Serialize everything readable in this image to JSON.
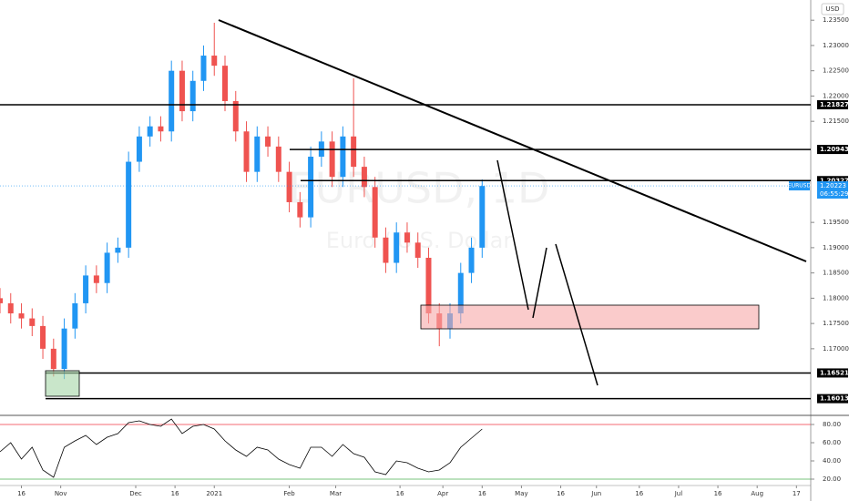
{
  "chart_data": {
    "type": "candlestick",
    "symbol": "EURUSD",
    "currency": "USD",
    "watermark": "EURUSD, 1D",
    "watermark_sub": "Euro / U.S. Dollar",
    "up_color": "#2196f3",
    "down_color": "#ef5350",
    "x": [
      0,
      3,
      6,
      9,
      12,
      15,
      18,
      21,
      24,
      27,
      30,
      33,
      36,
      39,
      42,
      45,
      48,
      51,
      54,
      57,
      60,
      63,
      66,
      69,
      72,
      75,
      78,
      81,
      84,
      87,
      90,
      93,
      96,
      99,
      102,
      105,
      108,
      111,
      114,
      117,
      120,
      123,
      126,
      129,
      132,
      135
    ],
    "open": [
      1.18,
      1.179,
      1.177,
      1.176,
      1.1745,
      1.17,
      1.166,
      1.174,
      1.179,
      1.1845,
      1.183,
      1.189,
      1.19,
      1.207,
      1.212,
      1.214,
      1.213,
      1.225,
      1.217,
      1.223,
      1.228,
      1.226,
      1.219,
      1.213,
      1.205,
      1.212,
      1.21,
      1.205,
      1.199,
      1.196,
      1.208,
      1.211,
      1.204,
      1.212,
      1.206,
      1.202,
      1.192,
      1.187,
      1.193,
      1.191,
      1.188,
      1.177,
      1.174,
      1.177,
      1.185,
      1.19
    ],
    "high": [
      1.182,
      1.181,
      1.179,
      1.178,
      1.1765,
      1.172,
      1.176,
      1.181,
      1.1865,
      1.1865,
      1.191,
      1.192,
      1.209,
      1.214,
      1.216,
      1.216,
      1.227,
      1.227,
      1.225,
      1.23,
      1.2345,
      1.228,
      1.221,
      1.215,
      1.214,
      1.214,
      1.212,
      1.207,
      1.201,
      1.21,
      1.213,
      1.213,
      1.214,
      1.2235,
      1.208,
      1.204,
      1.194,
      1.195,
      1.195,
      1.193,
      1.19,
      1.179,
      1.179,
      1.187,
      1.192,
      1.2035
    ],
    "low": [
      1.177,
      1.175,
      1.174,
      1.1725,
      1.168,
      1.1645,
      1.164,
      1.172,
      1.177,
      1.181,
      1.181,
      1.187,
      1.188,
      1.205,
      1.21,
      1.211,
      1.211,
      1.215,
      1.215,
      1.221,
      1.224,
      1.217,
      1.211,
      1.203,
      1.203,
      1.208,
      1.203,
      1.197,
      1.194,
      1.194,
      1.206,
      1.202,
      1.202,
      1.204,
      1.2,
      1.19,
      1.185,
      1.185,
      1.189,
      1.186,
      1.175,
      1.1705,
      1.172,
      1.175,
      1.183,
      1.188
    ],
    "close": [
      1.179,
      1.177,
      1.176,
      1.1745,
      1.17,
      1.166,
      1.174,
      1.179,
      1.1845,
      1.183,
      1.189,
      1.19,
      1.207,
      1.212,
      1.214,
      1.213,
      1.225,
      1.217,
      1.223,
      1.228,
      1.226,
      1.219,
      1.213,
      1.205,
      1.212,
      1.21,
      1.205,
      1.199,
      1.196,
      1.208,
      1.211,
      1.204,
      1.212,
      1.206,
      1.202,
      1.192,
      1.187,
      1.193,
      1.191,
      1.188,
      1.177,
      1.174,
      1.177,
      1.185,
      1.19,
      1.2022
    ],
    "xlim": [
      0,
      227
    ],
    "ylim": [
      1.157,
      1.239
    ],
    "xticks": [
      {
        "value": 6,
        "label": "16"
      },
      {
        "value": 17,
        "label": "Nov"
      },
      {
        "value": 38,
        "label": "Dec"
      },
      {
        "value": 49,
        "label": "16"
      },
      {
        "value": 60,
        "label": "2021"
      },
      {
        "value": 81,
        "label": "Feb"
      },
      {
        "value": 94,
        "label": "Mar"
      },
      {
        "value": 112,
        "label": "16"
      },
      {
        "value": 124,
        "label": "Apr"
      },
      {
        "value": 135,
        "label": "16"
      },
      {
        "value": 146,
        "label": "May"
      },
      {
        "value": 157,
        "label": "16"
      },
      {
        "value": 167,
        "label": "Jun"
      },
      {
        "value": 179,
        "label": "16"
      },
      {
        "value": 190,
        "label": "Jul"
      },
      {
        "value": 201,
        "label": "16"
      },
      {
        "value": 212,
        "label": "Aug"
      },
      {
        "value": 223,
        "label": "17"
      }
    ],
    "yticks": [
      {
        "value": 1.235,
        "label": "1.23500"
      },
      {
        "value": 1.23,
        "label": "1.23000"
      },
      {
        "value": 1.225,
        "label": "1.22500"
      },
      {
        "value": 1.22,
        "label": "1.22000"
      },
      {
        "value": 1.215,
        "label": "1.21500"
      },
      {
        "value": 1.195,
        "label": "1.19500"
      },
      {
        "value": 1.19,
        "label": "1.19000"
      },
      {
        "value": 1.185,
        "label": "1.18500"
      },
      {
        "value": 1.18,
        "label": "1.18000"
      },
      {
        "value": 1.175,
        "label": "1.17500"
      },
      {
        "value": 1.17,
        "label": "1.17000"
      }
    ],
    "levels": [
      1.21827,
      1.20943,
      1.20327,
      1.16521,
      1.16013
    ],
    "last_price": 1.20223,
    "countdown": "06:55:29",
    "rsi": {
      "values": [
        50,
        60,
        42,
        55,
        30,
        22,
        55,
        62,
        68,
        58,
        66,
        70,
        82,
        84,
        80,
        78,
        86,
        70,
        78,
        80,
        75,
        62,
        52,
        45,
        55,
        52,
        42,
        36,
        32,
        55,
        55,
        45,
        58,
        48,
        44,
        28,
        25,
        40,
        38,
        32,
        28,
        30,
        38,
        55,
        65,
        75
      ],
      "ylim": [
        13,
        88
      ],
      "yticks": [
        {
          "value": 80,
          "label": "80.00"
        },
        {
          "value": 60,
          "label": "60.00"
        },
        {
          "value": 40,
          "label": "40.00"
        },
        {
          "value": 20,
          "label": "20.00"
        }
      ]
    }
  }
}
